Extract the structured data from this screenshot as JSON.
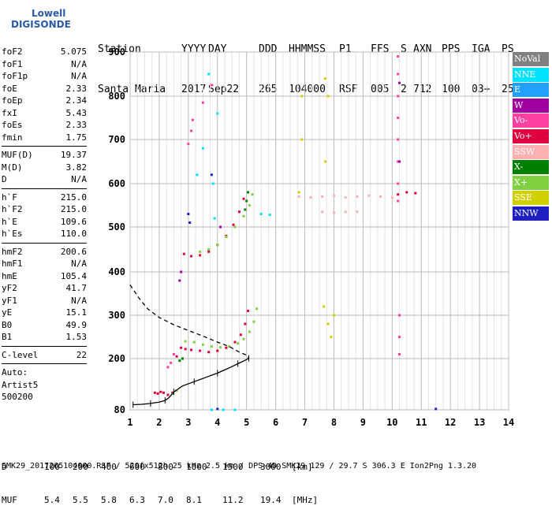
{
  "logo": {
    "line1": "Lowell",
    "line2": "DIGISONDE"
  },
  "header": {
    "columns": [
      "Station",
      "YYYY",
      "DAY",
      "DDD",
      "HHMMSS",
      "P1",
      "FFS",
      "S",
      "AXN",
      "PPS",
      "IGA",
      "PS"
    ],
    "values": [
      "Santa Maria",
      "2017",
      "Sep22",
      "265",
      "104000",
      "RSF",
      "005",
      "2",
      "712",
      "100",
      "03+",
      "25"
    ]
  },
  "params": [
    [
      {
        "name": "foF2",
        "value": "5.075"
      },
      {
        "name": "foF1",
        "value": "N/A"
      },
      {
        "name": "foF1p",
        "value": "N/A"
      },
      {
        "name": "foE",
        "value": "2.33"
      },
      {
        "name": "foEp",
        "value": "2.34"
      },
      {
        "name": "fxI",
        "value": "5.43"
      },
      {
        "name": "foEs",
        "value": "2.33"
      },
      {
        "name": "fmin",
        "value": "1.75"
      }
    ],
    [
      {
        "name": "MUF(D)",
        "value": "19.37"
      },
      {
        "name": "M(D)",
        "value": "3.82"
      },
      {
        "name": "D",
        "value": "N/A"
      }
    ],
    [
      {
        "name": "h`F",
        "value": "215.0"
      },
      {
        "name": "h`F2",
        "value": "215.0"
      },
      {
        "name": "h`E",
        "value": "109.6"
      },
      {
        "name": "h`Es",
        "value": "110.0"
      }
    ],
    [
      {
        "name": "hmF2",
        "value": "200.6"
      },
      {
        "name": "hmF1",
        "value": "N/A"
      },
      {
        "name": "hmE",
        "value": "105.4"
      },
      {
        "name": "yF2",
        "value": "41.7"
      },
      {
        "name": "yF1",
        "value": "N/A"
      },
      {
        "name": "yE",
        "value": "15.1"
      },
      {
        "name": "B0",
        "value": "49.9"
      },
      {
        "name": "B1",
        "value": "1.53"
      }
    ],
    [
      {
        "name": "C-level",
        "value": "22"
      }
    ]
  ],
  "autoscaler": {
    "line1": "Auto:",
    "line2": "Artist5",
    "line3": "500200"
  },
  "legend": [
    {
      "label": "NoVal",
      "color": "#808080"
    },
    {
      "label": "NNE",
      "color": "#00e0ff"
    },
    {
      "label": "E",
      "color": "#20a0ff"
    },
    {
      "label": "W",
      "color": "#a000a0"
    },
    {
      "label": "Vo-",
      "color": "#ff40a0"
    },
    {
      "label": "Vo+",
      "color": "#e00040"
    },
    {
      "label": "SSW",
      "color": "#ffb0b0"
    },
    {
      "label": "X-",
      "color": "#008000"
    },
    {
      "label": "X+",
      "color": "#80d040"
    },
    {
      "label": "SSE",
      "color": "#d0d000"
    },
    {
      "label": "NNW",
      "color": "#2020c0"
    }
  ],
  "footer": {
    "d_label": "D",
    "d_values": [
      "100",
      "200",
      "400",
      "600",
      "800",
      "1000",
      "1500",
      "3000"
    ],
    "d_unit": "[km]",
    "muf_label": "MUF",
    "muf_values": [
      "5.4",
      "5.5",
      "5.8",
      "6.3",
      "7.0",
      "8.1",
      "11.2",
      "19.4"
    ],
    "muf_unit": "[MHz]",
    "file_line": "SMK29_2017265104000.RSF / 520fx512h 25 kHz 2.5 km / DPS-4D SMK29 129 / 29.7 S 306.3 E Ion2Png 1.3.20"
  },
  "chart_data": {
    "type": "scatter",
    "title": "",
    "xlabel": "",
    "ylabel": "",
    "xlim": [
      1,
      14
    ],
    "ylim": [
      80,
      900
    ],
    "x_ticks": [
      1,
      2,
      3,
      4,
      5,
      6,
      7,
      8,
      9,
      10,
      11,
      12,
      13,
      14
    ],
    "y_ticks": [
      80,
      200,
      300,
      400,
      500,
      600,
      700,
      800,
      900
    ],
    "grid": true,
    "series": [
      {
        "name": "Vo+",
        "color": "#e00040",
        "points": [
          [
            1.85,
            120
          ],
          [
            1.95,
            118
          ],
          [
            2.05,
            122
          ],
          [
            2.15,
            120
          ],
          [
            2.3,
            115
          ],
          [
            2.45,
            120
          ],
          [
            2.6,
            205
          ],
          [
            2.75,
            225
          ],
          [
            2.9,
            222
          ],
          [
            3.1,
            220
          ],
          [
            3.4,
            218
          ],
          [
            3.7,
            215
          ],
          [
            4.0,
            218
          ],
          [
            4.3,
            225
          ],
          [
            4.6,
            238
          ],
          [
            4.8,
            255
          ],
          [
            4.95,
            280
          ],
          [
            5.05,
            310
          ],
          [
            2.85,
            440
          ],
          [
            3.1,
            435
          ],
          [
            3.4,
            437
          ],
          [
            3.7,
            445
          ],
          [
            4.0,
            460
          ],
          [
            4.3,
            480
          ],
          [
            4.55,
            505
          ],
          [
            4.75,
            535
          ],
          [
            4.9,
            565
          ],
          [
            10.2,
            575
          ],
          [
            10.5,
            580
          ],
          [
            10.8,
            578
          ]
        ]
      },
      {
        "name": "X+",
        "color": "#80d040",
        "points": [
          [
            2.45,
            118
          ],
          [
            2.6,
            125
          ],
          [
            2.9,
            240
          ],
          [
            3.2,
            238
          ],
          [
            3.5,
            232
          ],
          [
            3.8,
            228
          ],
          [
            4.1,
            226
          ],
          [
            4.4,
            228
          ],
          [
            4.7,
            235
          ],
          [
            4.9,
            245
          ],
          [
            5.1,
            262
          ],
          [
            5.25,
            285
          ],
          [
            5.35,
            315
          ],
          [
            3.4,
            445
          ],
          [
            3.7,
            450
          ],
          [
            4.0,
            460
          ],
          [
            4.3,
            478
          ],
          [
            4.6,
            500
          ],
          [
            4.9,
            525
          ],
          [
            5.1,
            550
          ],
          [
            5.2,
            575
          ]
        ]
      },
      {
        "name": "SSW",
        "color": "#ffb0b0",
        "points": [
          [
            6.8,
            570
          ],
          [
            7.2,
            568
          ],
          [
            7.6,
            570
          ],
          [
            8.0,
            572
          ],
          [
            8.4,
            568
          ],
          [
            8.8,
            570
          ],
          [
            9.2,
            572
          ],
          [
            9.6,
            570
          ],
          [
            10.0,
            568
          ],
          [
            7.6,
            535
          ],
          [
            8.0,
            533
          ],
          [
            8.4,
            535
          ],
          [
            8.8,
            535
          ]
        ]
      },
      {
        "name": "Vo-",
        "color": "#ff40a0",
        "points": [
          [
            2.3,
            180
          ],
          [
            2.4,
            190
          ],
          [
            2.5,
            210
          ],
          [
            3.0,
            690
          ],
          [
            3.1,
            720
          ],
          [
            3.15,
            745
          ],
          [
            3.5,
            785
          ],
          [
            3.8,
            825
          ],
          [
            10.2,
            560
          ],
          [
            10.2,
            600
          ],
          [
            10.2,
            650
          ],
          [
            10.2,
            700
          ],
          [
            10.2,
            750
          ],
          [
            10.2,
            800
          ],
          [
            10.2,
            850
          ],
          [
            10.2,
            890
          ],
          [
            10.25,
            300
          ],
          [
            10.25,
            250
          ],
          [
            10.25,
            210
          ]
        ]
      },
      {
        "name": "NNE",
        "color": "#00e0ff",
        "points": [
          [
            3.3,
            620
          ],
          [
            3.5,
            680
          ],
          [
            3.7,
            850
          ],
          [
            3.85,
            600
          ],
          [
            3.9,
            520
          ],
          [
            4.0,
            760
          ],
          [
            5.5,
            530
          ],
          [
            5.8,
            528
          ],
          [
            3.8,
            80
          ],
          [
            4.2,
            80
          ],
          [
            4.6,
            80
          ]
        ]
      },
      {
        "name": "SSE",
        "color": "#d0d000",
        "points": [
          [
            6.8,
            580
          ],
          [
            6.9,
            700
          ],
          [
            6.9,
            800
          ],
          [
            7.7,
            840
          ],
          [
            7.8,
            800
          ],
          [
            7.7,
            650
          ],
          [
            7.65,
            320
          ],
          [
            7.8,
            280
          ],
          [
            7.9,
            250
          ],
          [
            8.0,
            300
          ]
        ]
      },
      {
        "name": "X-",
        "color": "#008000",
        "points": [
          [
            2.7,
            195
          ],
          [
            2.8,
            200
          ],
          [
            5.0,
            560
          ],
          [
            5.05,
            580
          ],
          [
            4.95,
            540
          ]
        ]
      },
      {
        "name": "W",
        "color": "#a000a0",
        "points": [
          [
            2.7,
            380
          ],
          [
            2.75,
            400
          ],
          [
            4.1,
            500
          ],
          [
            10.25,
            830
          ],
          [
            10.25,
            650
          ]
        ]
      },
      {
        "name": "NNW",
        "color": "#2020c0",
        "points": [
          [
            3.0,
            530
          ],
          [
            3.05,
            510
          ],
          [
            3.8,
            620
          ],
          [
            4.0,
            82
          ],
          [
            11.5,
            82
          ]
        ]
      }
    ],
    "profile_lines": [
      {
        "name": "electron-density-profile",
        "style": "solid",
        "points": [
          [
            1.1,
            92
          ],
          [
            1.4,
            93
          ],
          [
            1.7,
            95
          ],
          [
            2.0,
            98
          ],
          [
            2.2,
            102
          ],
          [
            2.33,
            108
          ],
          [
            2.5,
            122
          ],
          [
            2.8,
            136
          ],
          [
            3.2,
            146
          ],
          [
            3.6,
            156
          ],
          [
            4.0,
            166
          ],
          [
            4.4,
            178
          ],
          [
            4.7,
            188
          ],
          [
            4.95,
            196
          ],
          [
            5.075,
            200.6
          ]
        ]
      },
      {
        "name": "extrapolated-topside",
        "style": "dashed",
        "points": [
          [
            1.0,
            370
          ],
          [
            1.3,
            340
          ],
          [
            1.6,
            315
          ],
          [
            2.0,
            295
          ],
          [
            2.5,
            278
          ],
          [
            3.0,
            265
          ],
          [
            3.5,
            252
          ],
          [
            4.0,
            238
          ],
          [
            4.4,
            228
          ],
          [
            4.75,
            215
          ],
          [
            5.0,
            208
          ],
          [
            5.075,
            200.6
          ]
        ]
      }
    ]
  }
}
